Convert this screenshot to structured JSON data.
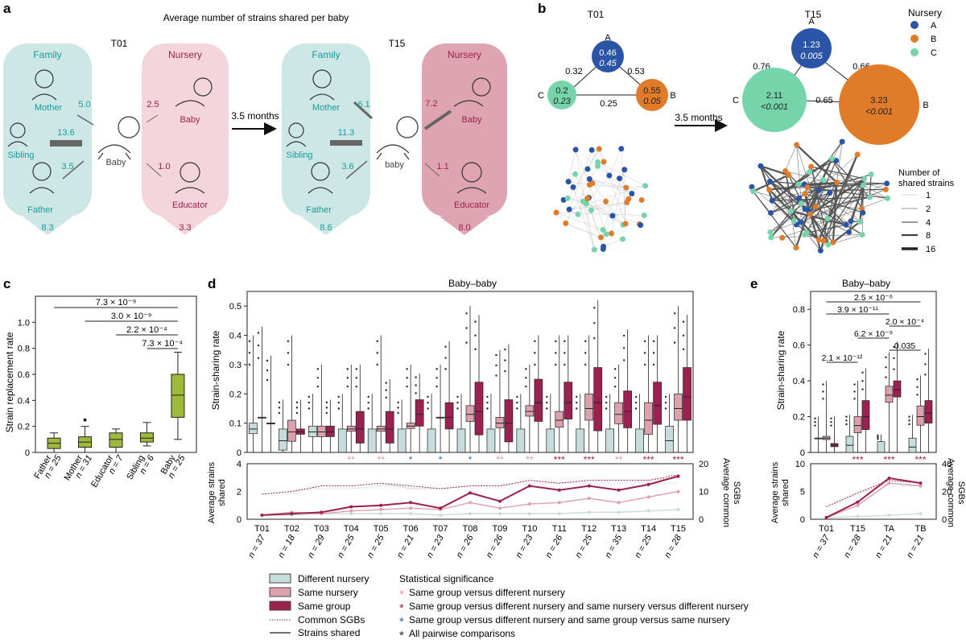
{
  "panels": {
    "a": "a",
    "b": "b",
    "c": "c",
    "d": "d",
    "e": "e"
  },
  "colors": {
    "teal_panel": "#cde7e7",
    "pink_panel": "#f4d5dc",
    "pink_panel2": "#dfa4b2",
    "teal_text": "#1a9a9a",
    "crimson_text": "#9b2150",
    "diff": "#c7dcdc",
    "same": "#dca1ad",
    "group": "#9b2150",
    "green": "#9dba3b",
    "nurA": "#2a55a6",
    "nurB": "#e07b2a",
    "nurC": "#76d4ab"
  },
  "panel_a": {
    "title": "Average number of strains shared per baby",
    "t01": "T01",
    "t15": "T15",
    "arrow_label": "3.5 months",
    "family": "Family",
    "nursery": "Nursery",
    "mother": "Mother",
    "sibling": "Sibling",
    "father": "Father",
    "baby": "Baby",
    "educator": "Educator",
    "baby_lower": "baby",
    "left": {
      "mother": "5.0",
      "sibling": "13.6",
      "father": "3.5",
      "nursery_baby": "2.5",
      "educator": "1.0",
      "family_total": "8.3",
      "nursery_total": "3.3"
    },
    "right": {
      "mother": "6.1",
      "sibling": "11.3",
      "father": "3.6",
      "nursery_baby": "7.2",
      "educator": "1.1",
      "family_total": "8.6",
      "nursery_total": "8.0"
    }
  },
  "panel_b": {
    "t01": "T01",
    "t15": "T15",
    "arrow_label": "3.5 months",
    "legend_title": "Nursery",
    "legend": [
      "A",
      "B",
      "C"
    ],
    "t01_nodes": {
      "A": {
        "v1": "0.46",
        "v2": "0.45"
      },
      "B": {
        "v1": "0.55",
        "v2": "0.05"
      },
      "C": {
        "v1": "0.2",
        "v2": "0.23"
      }
    },
    "t01_edges": {
      "AC": "0.32",
      "AB": "0.53",
      "CB": "0.25"
    },
    "t15_nodes": {
      "A": {
        "v1": "1.23",
        "v2": "0.005"
      },
      "B": {
        "v1": "3.23",
        "v2": "<0.001"
      },
      "C": {
        "v1": "2.11",
        "v2": "<0.001"
      }
    },
    "t15_edges": {
      "AC": "0.76",
      "AB": "0.66",
      "CB": "0.65"
    },
    "strain_legend_title": [
      "Number of",
      "shared strains"
    ],
    "strain_legend": [
      "1",
      "2",
      "4",
      "8",
      "16"
    ]
  },
  "panel_c": {
    "ylabel": "Strain replacement rate",
    "yticks": [
      "0",
      "0.2",
      "0.4",
      "0.6",
      "0.8",
      "1.0"
    ],
    "categories": [
      {
        "label": "Father",
        "n": "n = 25"
      },
      {
        "label": "Mother",
        "n": "n = 31"
      },
      {
        "label": "Educator",
        "n": "n = 7"
      },
      {
        "label": "Sibling",
        "n": "n = 6"
      },
      {
        "label": "Baby",
        "n": "n = 25"
      }
    ],
    "brackets": [
      "7.3 × 10⁻⁹",
      "3.0 × 10⁻⁹",
      "2.2 × 10⁻⁴",
      "7.3 × 10⁻⁴"
    ]
  },
  "panel_d": {
    "title": "Baby–baby",
    "ylabel_top": "Strain-sharing rate",
    "yticks_top": [
      "0",
      "0.1",
      "0.2",
      "0.3",
      "0.4",
      "0.5"
    ],
    "ylabel_bottom": [
      "Average strains",
      "shared"
    ],
    "ylabel_right": [
      "Average common",
      "SGBs"
    ],
    "yticks_bottom_left": [
      "0",
      "2",
      "4"
    ],
    "yticks_bottom_right": [
      "0",
      "10",
      "20"
    ],
    "timepoints": [
      "T01",
      "T02",
      "T03",
      "T04",
      "T05",
      "T06",
      "T07",
      "T08",
      "T09",
      "T10",
      "T11",
      "T12",
      "T13",
      "T14",
      "T15"
    ],
    "n": [
      "n = 37",
      "n = 18",
      "n = 29",
      "n = 25",
      "n = 25",
      "n = 21",
      "n = 23",
      "n = 26",
      "n = 26",
      "n = 23",
      "n = 26",
      "n = 25",
      "n = 35",
      "n = 25",
      "n = 28"
    ]
  },
  "panel_e": {
    "title": "Baby–baby",
    "ylabel_top": "Strain-sharing rate",
    "yticks_top": [
      "0",
      "0.2",
      "0.4",
      "0.6",
      "0.8"
    ],
    "brackets": [
      "2.5 × 10⁻⁶",
      "3.9 × 10⁻¹¹",
      "2.0 × 10⁻⁴",
      "6.2 × 10⁻⁹",
      "0.035",
      "2.1 × 10⁻¹²"
    ],
    "ylabel_bottom": [
      "Average strains",
      "shared"
    ],
    "ylabel_right": [
      "Average common",
      "SGBs"
    ],
    "yticks_bottom_left": [
      "0",
      "5",
      "10"
    ],
    "yticks_bottom_right": [
      "0",
      "20",
      "40"
    ],
    "timepoints": [
      "T01",
      "T15",
      "TA",
      "TB"
    ],
    "n": [
      "n = 37",
      "n = 28",
      "n = 21",
      "n = 21"
    ]
  },
  "legend": {
    "diff": "Different nursery",
    "same": "Same nursery",
    "group": "Same group",
    "sgb": "Common SGBs",
    "strains": "Strains shared",
    "sig_title": "Statistical significance",
    "sig": [
      "Same group versus different nursery",
      "Same group versus different nursery and same nursery versus different nursery",
      "Same group versus different nursery and same group versus same nursery",
      "All pairwise comparisons"
    ]
  },
  "chart_data": [
    {
      "panel": "c",
      "type": "box",
      "title": "",
      "xlabel": "",
      "ylabel": "Strain replacement rate",
      "ylim": [
        0,
        1.2
      ],
      "categories": [
        "Father",
        "Mother",
        "Educator",
        "Sibling",
        "Baby"
      ],
      "boxes": [
        {
          "min": 0.0,
          "q1": 0.03,
          "median": 0.07,
          "q3": 0.11,
          "max": 0.15
        },
        {
          "min": 0.0,
          "q1": 0.04,
          "median": 0.08,
          "q3": 0.12,
          "max": 0.2,
          "outliers": [
            0.25
          ]
        },
        {
          "min": 0.0,
          "q1": 0.04,
          "median": 0.1,
          "q3": 0.15,
          "max": 0.18
        },
        {
          "min": 0.05,
          "q1": 0.08,
          "median": 0.11,
          "q3": 0.15,
          "max": 0.23
        },
        {
          "min": 0.1,
          "q1": 0.27,
          "median": 0.44,
          "q3": 0.6,
          "max": 0.77
        }
      ],
      "comparisons": [
        {
          "a": "Father",
          "b": "Baby",
          "p": "7.3 × 10⁻⁹"
        },
        {
          "a": "Mother",
          "b": "Baby",
          "p": "3.0 × 10⁻⁹"
        },
        {
          "a": "Educator",
          "b": "Baby",
          "p": "2.2 × 10⁻⁴"
        },
        {
          "a": "Sibling",
          "b": "Baby",
          "p": "7.3 × 10⁻⁴"
        }
      ]
    },
    {
      "panel": "d",
      "type": "box",
      "title": "Baby–baby",
      "ylabel": "Strain-sharing rate",
      "ylim": [
        0,
        0.55
      ],
      "categories": [
        "T01",
        "T02",
        "T03",
        "T04",
        "T05",
        "T06",
        "T07",
        "T08",
        "T09",
        "T10",
        "T11",
        "T12",
        "T13",
        "T14",
        "T15"
      ],
      "series": [
        {
          "name": "Different nursery",
          "medians": [
            0.08,
            0.04,
            0.07,
            0.0,
            0.0,
            0.0,
            0.0,
            0.0,
            0.0,
            0.0,
            0.0,
            0.0,
            0.0,
            0.0,
            0.04
          ],
          "q3": [
            0.1,
            0.08,
            0.09,
            0.08,
            0.08,
            0.08,
            0.08,
            0.08,
            0.08,
            0.08,
            0.08,
            0.08,
            0.08,
            0.08,
            0.09
          ],
          "max": [
            0.4,
            0.18,
            0.2,
            0.2,
            0.2,
            0.18,
            0.2,
            0.2,
            0.2,
            0.2,
            0.2,
            0.2,
            0.2,
            0.2,
            0.2
          ]
        },
        {
          "name": "Same nursery",
          "medians": [
            0.12,
            0.07,
            0.07,
            0.08,
            0.08,
            0.09,
            0.12,
            0.13,
            0.1,
            0.14,
            0.11,
            0.15,
            0.13,
            0.11,
            0.15
          ],
          "q3": [
            0.12,
            0.11,
            0.09,
            0.09,
            0.09,
            0.1,
            0.12,
            0.16,
            0.12,
            0.16,
            0.14,
            0.2,
            0.17,
            0.17,
            0.2
          ],
          "max": [
            0.43,
            0.4,
            0.3,
            0.3,
            0.4,
            0.3,
            0.3,
            0.5,
            0.35,
            0.3,
            0.4,
            0.4,
            0.3,
            0.4,
            0.5
          ]
        },
        {
          "name": "Same group",
          "medians": [
            0.1,
            0.07,
            0.07,
            0.08,
            0.08,
            0.13,
            0.12,
            0.14,
            0.1,
            0.17,
            0.17,
            0.17,
            0.14,
            0.16,
            0.19
          ],
          "q3": [
            0.1,
            0.08,
            0.09,
            0.14,
            0.14,
            0.18,
            0.17,
            0.24,
            0.18,
            0.25,
            0.24,
            0.29,
            0.21,
            0.24,
            0.29
          ],
          "max": [
            0.33,
            0.18,
            0.18,
            0.3,
            0.25,
            0.27,
            0.38,
            0.47,
            0.37,
            0.4,
            0.4,
            0.52,
            0.42,
            0.4,
            0.47
          ]
        }
      ],
      "significance": [
        "",
        "",
        "",
        "**",
        "**",
        "*",
        "*",
        "*",
        "**",
        "**",
        "***",
        "***",
        "**",
        "***",
        "***"
      ],
      "bottom": {
        "ylabel": "Average strains shared",
        "ylim": [
          0,
          4
        ],
        "y2label": "Average common SGBs",
        "y2lim": [
          0,
          20
        ],
        "strains_shared": {
          "Different nursery": [
            0.3,
            0.3,
            0.4,
            0.4,
            0.4,
            0.4,
            0.3,
            0.4,
            0.4,
            0.4,
            0.4,
            0.5,
            0.5,
            0.6,
            0.7
          ],
          "Same nursery": [
            0.3,
            0.5,
            0.4,
            0.6,
            0.7,
            0.8,
            0.7,
            1.2,
            0.8,
            1.1,
            1.2,
            1.5,
            1.2,
            1.6,
            2.0
          ],
          "Same group": [
            0.3,
            0.4,
            0.5,
            0.9,
            1.0,
            1.2,
            0.8,
            1.9,
            1.3,
            2.4,
            2.1,
            2.4,
            2.1,
            2.5,
            3.1
          ]
        },
        "common_sgbs": {
          "Different nursery": [
            9,
            10,
            11,
            11,
            12,
            12,
            11,
            12,
            12,
            13,
            13,
            13,
            13,
            13,
            13
          ],
          "Same nursery": [
            9,
            10,
            12,
            12,
            13,
            11,
            11,
            12,
            12,
            14,
            13,
            14,
            14,
            14,
            15
          ],
          "Same group": [
            9,
            10,
            12,
            12,
            13,
            12,
            11,
            12,
            12,
            14,
            13,
            14,
            14,
            14,
            16
          ]
        }
      }
    },
    {
      "panel": "e",
      "type": "box",
      "title": "Baby–baby",
      "ylabel": "Strain-sharing rate",
      "ylim": [
        0,
        0.9
      ],
      "categories": [
        "T01",
        "T15",
        "TA",
        "TB"
      ],
      "series": [
        {
          "name": "Different nursery",
          "medians": [
            0.08,
            0.04,
            0.0,
            0.03
          ],
          "q3": [
            0.08,
            0.09,
            0.06,
            0.08
          ],
          "max": [
            0.2,
            0.21,
            0.1,
            0.21
          ]
        },
        {
          "name": "Same nursery",
          "medians": [
            0.08,
            0.15,
            0.32,
            0.2
          ],
          "q3": [
            0.09,
            0.2,
            0.37,
            0.26
          ],
          "max": [
            0.4,
            0.4,
            0.56,
            0.43
          ]
        },
        {
          "name": "Same group",
          "medians": [
            0.04,
            0.2,
            0.35,
            0.22
          ],
          "q3": [
            0.05,
            0.29,
            0.4,
            0.29
          ],
          "max": [
            0.2,
            0.47,
            0.62,
            0.58
          ]
        }
      ],
      "significance": [
        "",
        "***",
        "***",
        "***"
      ],
      "comparisons": [
        {
          "a": "T01",
          "b": "TB",
          "p": "2.5 × 10⁻⁶"
        },
        {
          "a": "T01",
          "b": "TA",
          "p": "3.9 × 10⁻¹¹"
        },
        {
          "a": "TA",
          "b": "TB",
          "p": "2.0 × 10⁻⁴"
        },
        {
          "a": "T15",
          "b": "TA",
          "p": "6.2 × 10⁻⁹"
        },
        {
          "a": "TA",
          "b": "TB",
          "p": "0.035"
        },
        {
          "a": "T01",
          "b": "T15",
          "p": "2.1 × 10⁻¹²"
        }
      ],
      "bottom": {
        "ylabel": "Average strains shared",
        "ylim": [
          0,
          10
        ],
        "y2label": "Average common SGBs",
        "y2lim": [
          0,
          40
        ],
        "strains_shared": {
          "Different nursery": [
            0.3,
            0.5,
            0.7,
            1.0
          ],
          "Same nursery": [
            0.3,
            2.5,
            6.5,
            6.0
          ],
          "Same group": [
            0.3,
            3.1,
            7.4,
            6.5
          ]
        },
        "common_sgbs": {
          "Different nursery": [
            9,
            18,
            24,
            24
          ],
          "Same nursery": [
            9,
            19,
            26,
            24
          ],
          "Same group": [
            9,
            19,
            28,
            26
          ]
        }
      }
    }
  ]
}
